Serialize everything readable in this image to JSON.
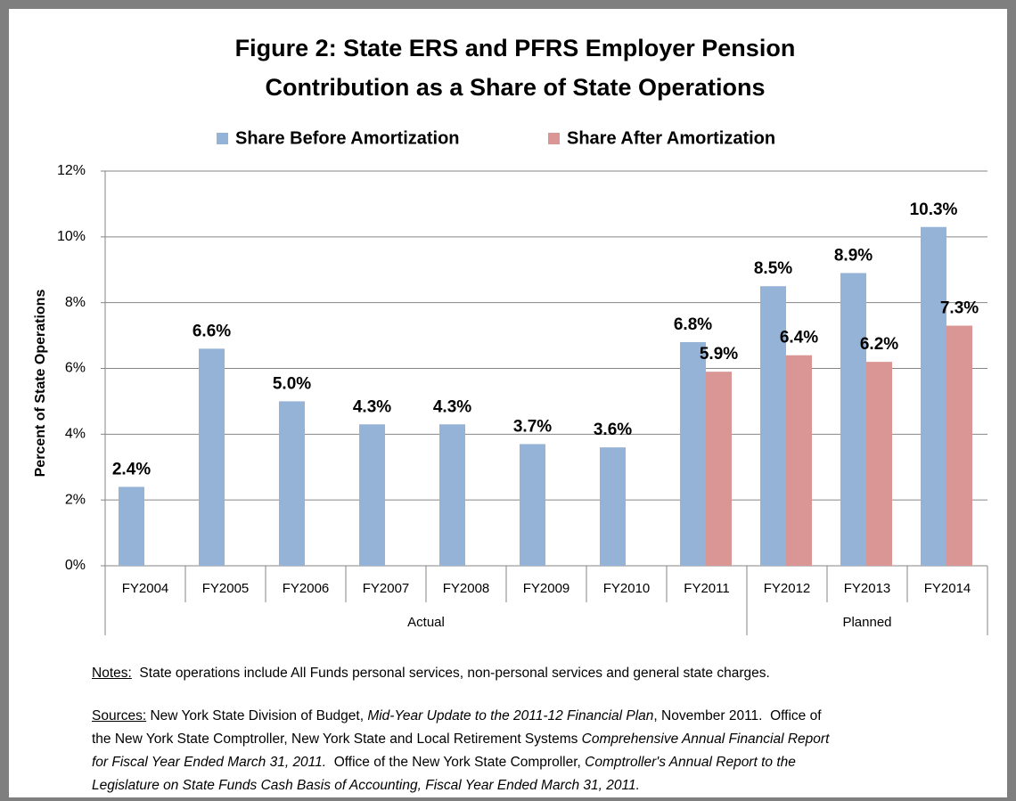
{
  "chart_data": {
    "type": "bar",
    "title": [
      "Figure 2: State ERS and PFRS Employer Pension",
      "Contribution as a Share of State Operations"
    ],
    "y_label": "Percent of State Operations",
    "categories": [
      "FY2004",
      "FY2005",
      "FY2006",
      "FY2007",
      "FY2008",
      "FY2009",
      "FY2010",
      "FY2011",
      "FY2012",
      "FY2013",
      "FY2014"
    ],
    "category_groups": [
      "Actual",
      "Actual",
      "Actual",
      "Actual",
      "Actual",
      "Actual",
      "Actual",
      "Actual",
      "Planned",
      "Planned",
      "Planned"
    ],
    "series": [
      {
        "name": "Share Before Amortization",
        "color": "#95b3d7",
        "values": [
          2.4,
          6.6,
          5.0,
          4.3,
          4.3,
          3.7,
          3.6,
          6.8,
          8.5,
          8.9,
          10.3
        ],
        "value_labels": [
          "2.4%",
          "6.6%",
          "5.0%",
          "4.3%",
          "4.3%",
          "3.7%",
          "3.6%",
          "6.8%",
          "8.5%",
          "8.9%",
          "10.3%"
        ]
      },
      {
        "name": "Share After Amortization",
        "color": "#d99694",
        "values": [
          null,
          null,
          null,
          null,
          null,
          null,
          null,
          5.9,
          6.4,
          6.2,
          7.3
        ],
        "value_labels": [
          null,
          null,
          null,
          null,
          null,
          null,
          null,
          "5.9%",
          "6.4%",
          "6.2%",
          "7.3%"
        ]
      }
    ],
    "ylim": [
      0,
      12
    ],
    "yticks": [
      {
        "value": 0,
        "label": "0%"
      },
      {
        "value": 2,
        "label": "2%"
      },
      {
        "value": 4,
        "label": "4%"
      },
      {
        "value": 6,
        "label": "6%"
      },
      {
        "value": 8,
        "label": "8%"
      },
      {
        "value": 10,
        "label": "10%"
      },
      {
        "value": 12,
        "label": "12%"
      }
    ],
    "grid": true,
    "legend": "top",
    "notes": {
      "label": "Notes:",
      "text": "  State operations include All Funds personal services, non-personal services and general state charges."
    },
    "sources": {
      "label": "Sources:",
      "lines": [
        [
          {
            "text": " New York State Division of Budget, "
          },
          {
            "text": "Mid-Year Update to the 2011-12 Financial Plan",
            "italic": true
          },
          {
            "text": ", November 2011.  Office of"
          }
        ],
        [
          {
            "text": "the New York State Comptroller, New York State and Local Retirement Systems "
          },
          {
            "text": "Comprehensive Annual Financial Report",
            "italic": true
          }
        ],
        [
          {
            "text": "for Fiscal Year Ended March 31, 2011.",
            "italic": true
          },
          {
            "text": "  Office of the New York State Comproller, "
          },
          {
            "text": "Comptroller's Annual Report to the",
            "italic": true
          }
        ],
        [
          {
            "text": "Legislature on State Funds Cash Basis of Accounting, Fiscal Year Ended March 31, 2011.",
            "italic": true
          }
        ]
      ]
    }
  }
}
